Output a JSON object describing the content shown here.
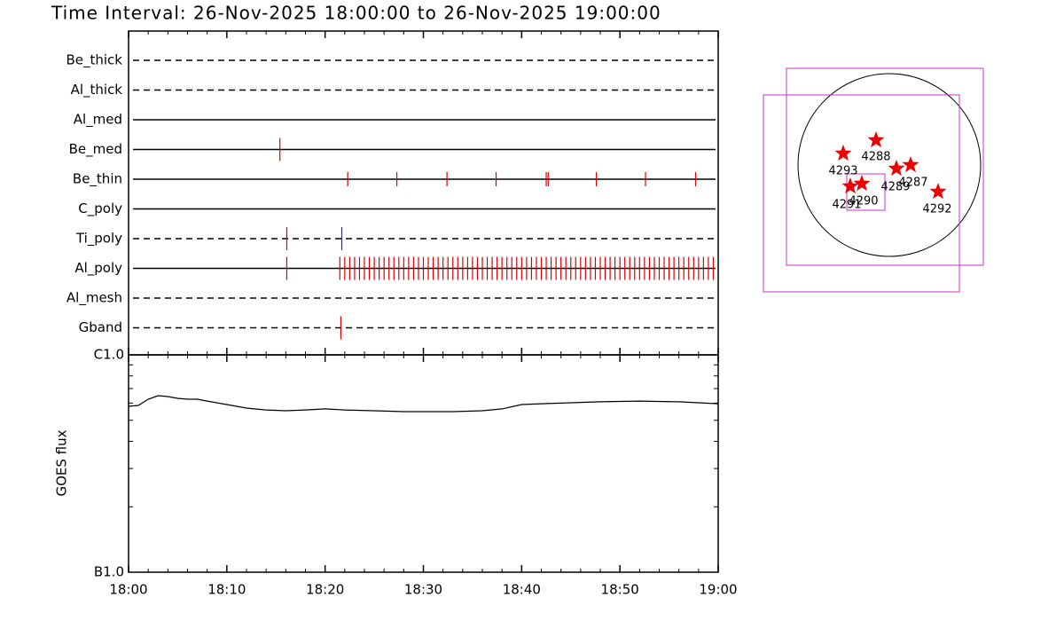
{
  "title": "Time Interval: 26-Nov-2025 18:00:00 to 26-Nov-2025 19:00:00",
  "chart_data": [
    {
      "type": "timeline",
      "event_color": "#dd0000",
      "rows": [
        {
          "name": "Be_thick",
          "style": "dashed",
          "times": []
        },
        {
          "name": "Al_thick",
          "style": "dashed",
          "times": []
        },
        {
          "name": "Al_med",
          "style": "solid",
          "times": []
        },
        {
          "name": "Be_med",
          "style": "solid",
          "times": [
            15.4
          ]
        },
        {
          "name": "Be_thin",
          "style": "solid",
          "times": [
            22.3,
            27.3,
            32.4,
            37.4,
            42.5,
            42.7,
            47.6,
            52.6,
            57.7
          ]
        },
        {
          "name": "C_poly",
          "style": "solid",
          "times": []
        },
        {
          "name": "Ti_poly",
          "style": "dashed",
          "times": [
            16.1,
            21.7
          ],
          "colors": [
            "#dd0000",
            "#2020cc"
          ]
        },
        {
          "name": "Al_poly",
          "style": "solid",
          "times": [
            16.1,
            21.5,
            22,
            22.5,
            23,
            23.5,
            24,
            24.5,
            25,
            25.5,
            26,
            26.5,
            27,
            27.5,
            28,
            28.5,
            29,
            29.5,
            30,
            30.5,
            31,
            31.5,
            32,
            32.5,
            33,
            33.5,
            34,
            34.5,
            35,
            35.5,
            36,
            36.5,
            37,
            37.5,
            38,
            38.5,
            39,
            39.5,
            40,
            40.5,
            41,
            41.5,
            42,
            42.5,
            43,
            43.5,
            44,
            44.5,
            45,
            45.5,
            46,
            46.5,
            47,
            47.5,
            48,
            48.5,
            49,
            49.5,
            50,
            50.5,
            51,
            51.5,
            52,
            52.5,
            53,
            53.5,
            54,
            54.5,
            55,
            55.5,
            56,
            56.5,
            57,
            57.5,
            58,
            58.5,
            59,
            59.5
          ]
        },
        {
          "name": "Al_mesh",
          "style": "dashed",
          "times": []
        },
        {
          "name": "Gband",
          "style": "dashed",
          "times": [
            21.6
          ]
        }
      ]
    },
    {
      "type": "line",
      "ylabel": "GOES flux",
      "log": true,
      "color": "#000000",
      "xlim": [
        0,
        60
      ],
      "xticks": [
        {
          "value": 0,
          "label": "18:00"
        },
        {
          "value": 10,
          "label": "18:10"
        },
        {
          "value": 20,
          "label": "18:20"
        },
        {
          "value": 30,
          "label": "18:30"
        },
        {
          "value": 40,
          "label": "18:40"
        },
        {
          "value": 50,
          "label": "18:50"
        },
        {
          "value": 60,
          "label": "19:00"
        }
      ],
      "ylim": [
        1e-07,
        1e-06
      ],
      "yticks": [
        {
          "value": 1e-07,
          "label": "B1.0"
        },
        {
          "value": 1e-06,
          "label": "C1.0"
        }
      ],
      "x": [
        0,
        1,
        2,
        3,
        4,
        5,
        6,
        7,
        8,
        10,
        12,
        14,
        16,
        18,
        20,
        22,
        25,
        28,
        30,
        33,
        36,
        38,
        40,
        42,
        45,
        48,
        52,
        56,
        58,
        60
      ],
      "values": [
        5.8e-07,
        5.85e-07,
        6.25e-07,
        6.49e-07,
        6.43e-07,
        6.31e-07,
        6.25e-07,
        6.25e-07,
        6.13e-07,
        5.91e-07,
        5.69e-07,
        5.58e-07,
        5.53e-07,
        5.58e-07,
        5.64e-07,
        5.58e-07,
        5.53e-07,
        5.48e-07,
        5.48e-07,
        5.48e-07,
        5.53e-07,
        5.64e-07,
        5.91e-07,
        5.96e-07,
        6.02e-07,
        6.08e-07,
        6.13e-07,
        6.08e-07,
        6.02e-07,
        5.96e-07
      ]
    }
  ],
  "solar_map": {
    "regions": [
      "4288",
      "4293",
      "4287",
      "4289",
      "4290",
      "4291",
      "4292"
    ]
  }
}
